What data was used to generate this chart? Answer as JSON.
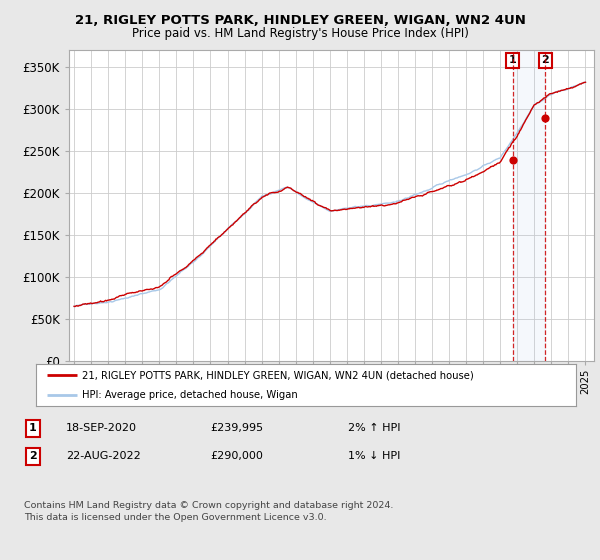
{
  "title1": "21, RIGLEY POTTS PARK, HINDLEY GREEN, WIGAN, WN2 4UN",
  "title2": "Price paid vs. HM Land Registry's House Price Index (HPI)",
  "ylabel_ticks": [
    "£0",
    "£50K",
    "£100K",
    "£150K",
    "£200K",
    "£250K",
    "£300K",
    "£350K"
  ],
  "ytick_vals": [
    0,
    50000,
    100000,
    150000,
    200000,
    250000,
    300000,
    350000
  ],
  "ylim": [
    0,
    370000
  ],
  "xlim_start": 1994.7,
  "xlim_end": 2025.5,
  "bg_color": "#e8e8e8",
  "plot_bg_color": "#ffffff",
  "grid_color": "#cccccc",
  "hpi_color": "#a8c8e8",
  "house_color": "#cc0000",
  "sale1_x": 2020.72,
  "sale1_y": 239995,
  "sale2_x": 2022.64,
  "sale2_y": 290000,
  "legend_house": "21, RIGLEY POTTS PARK, HINDLEY GREEN, WIGAN, WN2 4UN (detached house)",
  "legend_hpi": "HPI: Average price, detached house, Wigan",
  "table_rows": [
    [
      "1",
      "18-SEP-2020",
      "£239,995",
      "2% ↑ HPI"
    ],
    [
      "2",
      "22-AUG-2022",
      "£290,000",
      "1% ↓ HPI"
    ]
  ],
  "footer": "Contains HM Land Registry data © Crown copyright and database right 2024.\nThis data is licensed under the Open Government Licence v3.0."
}
